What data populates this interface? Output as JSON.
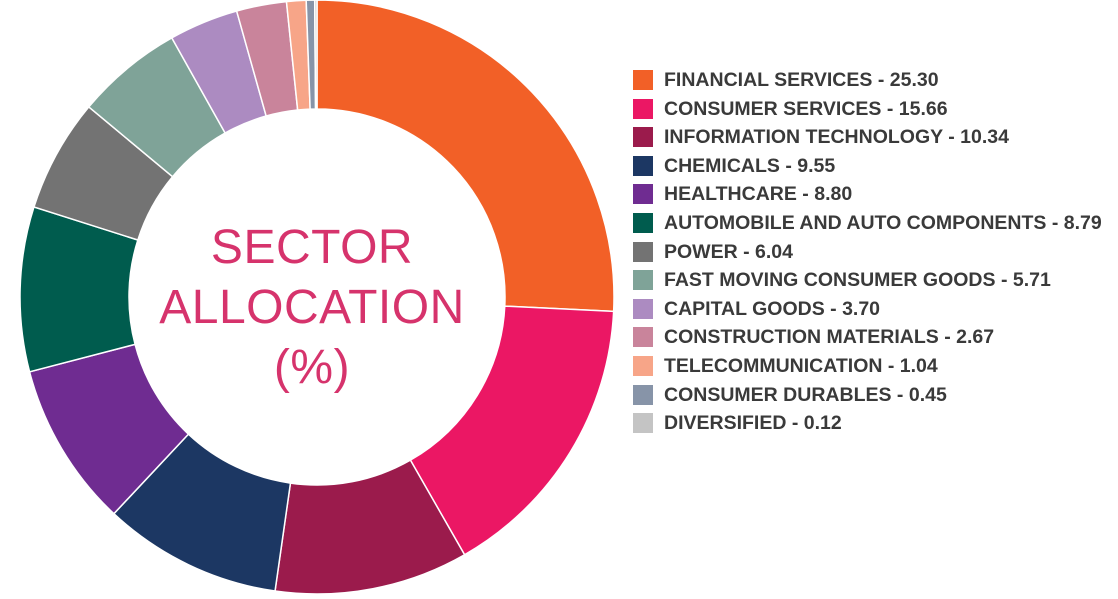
{
  "chart_data": {
    "type": "pie",
    "title": "SECTOR ALLOCATION (%)",
    "title_lines": [
      "SECTOR",
      "ALLOCATION",
      "(%)"
    ],
    "legend_position": "right",
    "slices": [
      {
        "label": "FINANCIAL SERVICES",
        "value": 25.3,
        "value_text": "25.30",
        "color": "#f26027"
      },
      {
        "label": "CONSUMER SERVICES",
        "value": 15.66,
        "value_text": "15.66",
        "color": "#eb1764"
      },
      {
        "label": "INFORMATION TECHNOLOGY",
        "value": 10.34,
        "value_text": "10.34",
        "color": "#9b1b4c"
      },
      {
        "label": "CHEMICALS",
        "value": 9.55,
        "value_text": "9.55",
        "color": "#1c3763"
      },
      {
        "label": "HEALTHCARE",
        "value": 8.8,
        "value_text": "8.80",
        "color": "#6f2c91"
      },
      {
        "label": "AUTOMOBILE AND AUTO COMPONENTS",
        "value": 8.79,
        "value_text": "8.79",
        "color": "#005c4e"
      },
      {
        "label": "POWER",
        "value": 6.04,
        "value_text": "6.04",
        "color": "#737373"
      },
      {
        "label": "FAST MOVING CONSUMER GOODS",
        "value": 5.71,
        "value_text": "5.71",
        "color": "#7fa398"
      },
      {
        "label": "CAPITAL GOODS",
        "value": 3.7,
        "value_text": "3.70",
        "color": "#ac8bc1"
      },
      {
        "label": "CONSTRUCTION MATERIALS",
        "value": 2.67,
        "value_text": "2.67",
        "color": "#c9849b"
      },
      {
        "label": "TELECOMMUNICATION",
        "value": 1.04,
        "value_text": "1.04",
        "color": "#f7a588"
      },
      {
        "label": "CONSUMER DURABLES",
        "value": 0.45,
        "value_text": "0.45",
        "color": "#8794a8"
      },
      {
        "label": "DIVERSIFIED",
        "value": 0.12,
        "value_text": "0.12",
        "color": "#c4c4c4"
      }
    ]
  }
}
